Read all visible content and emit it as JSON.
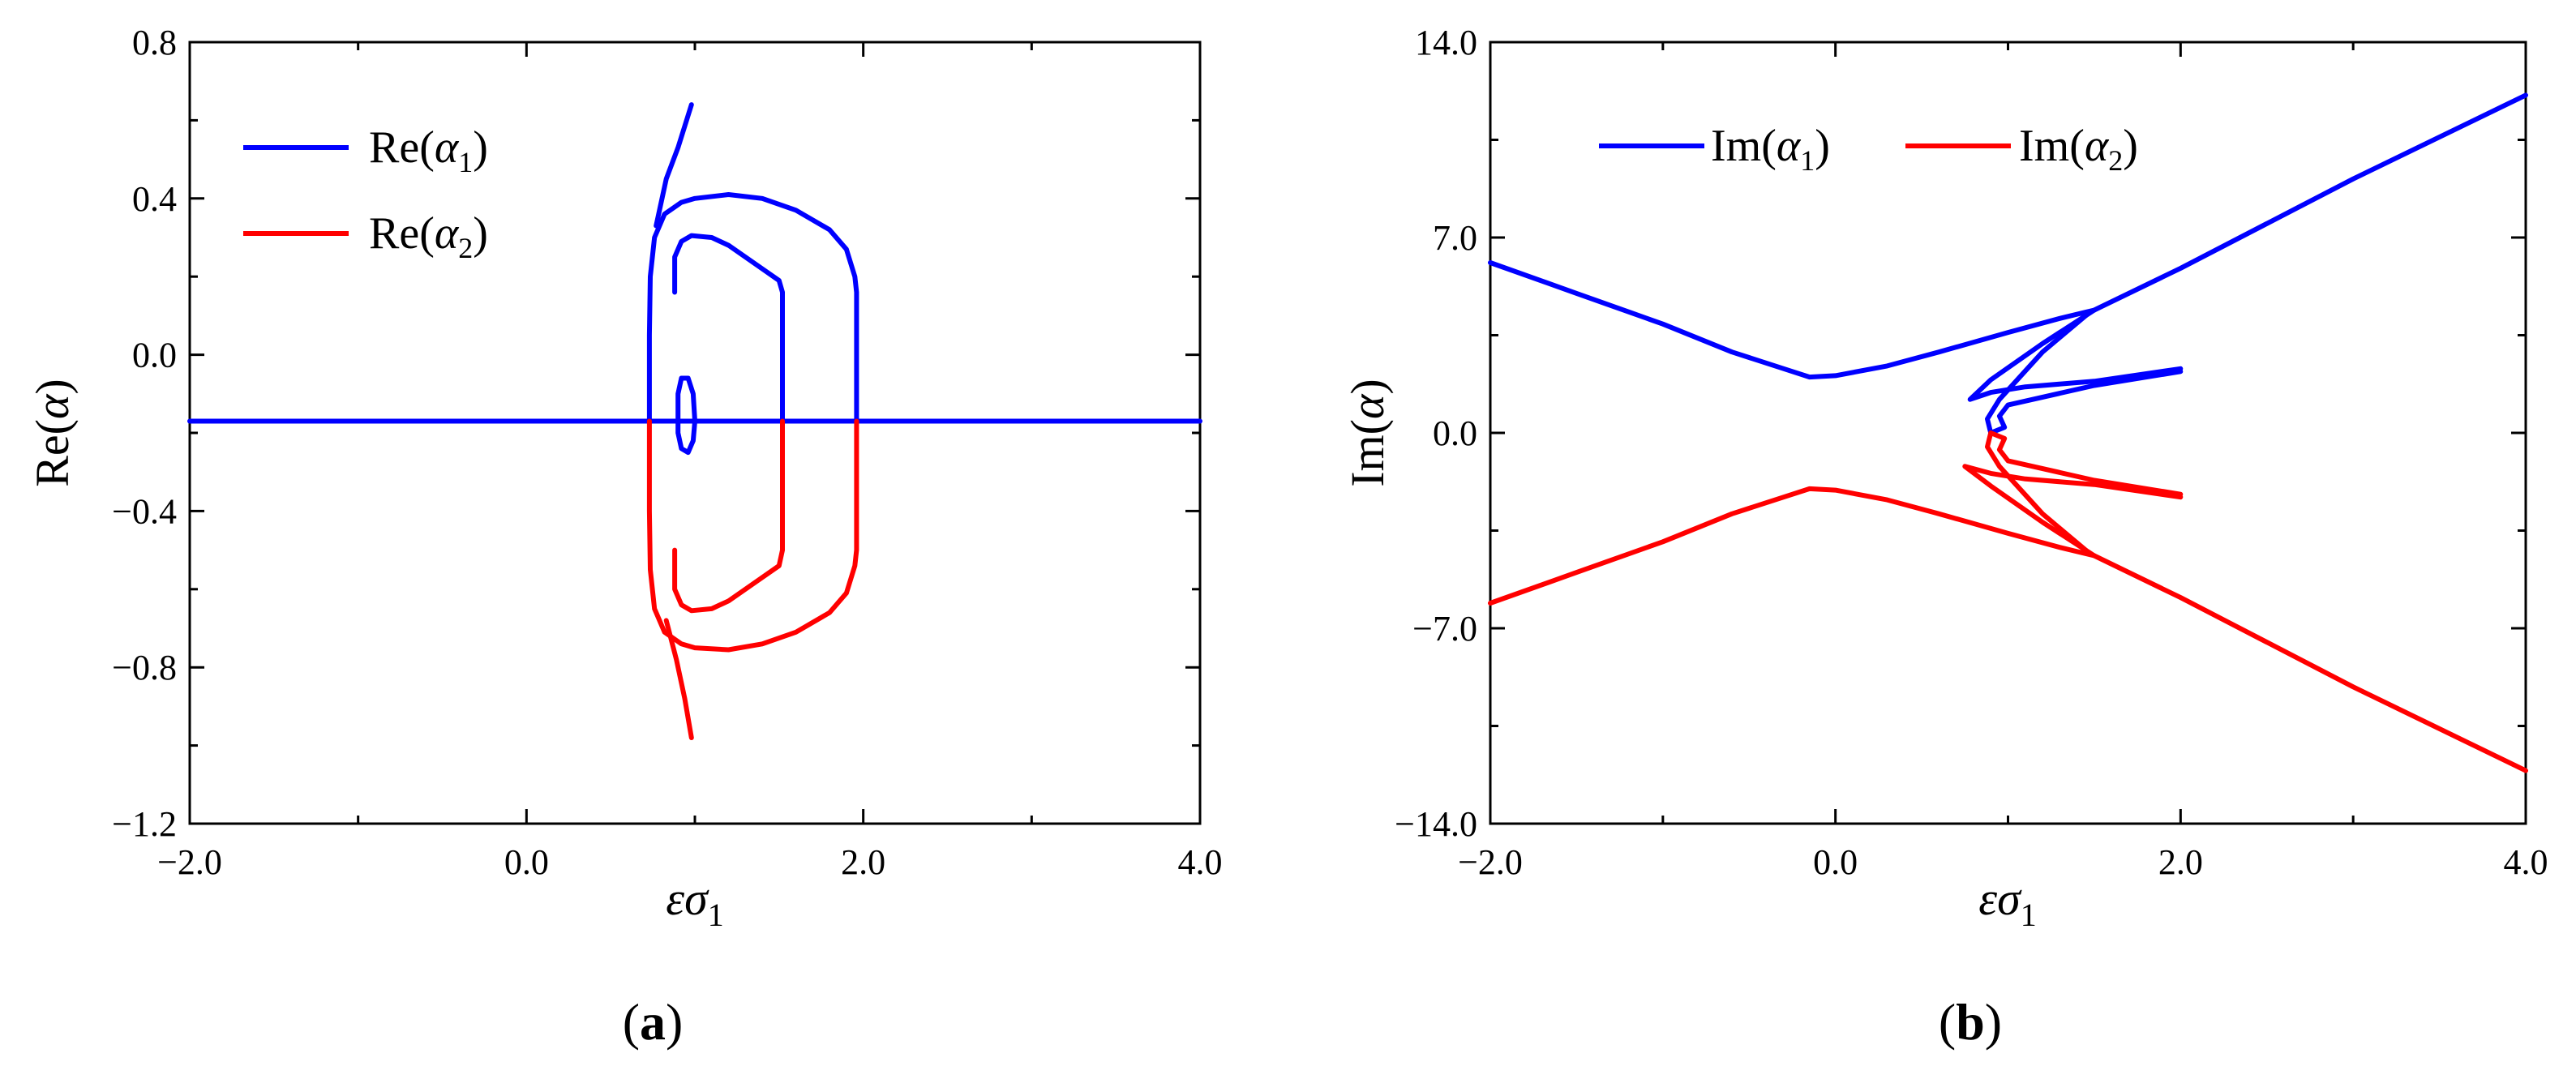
{
  "colors": {
    "blue": "#0000ff",
    "red": "#ff0000",
    "axis": "#000000"
  },
  "chart_data": [
    {
      "type": "line",
      "panel": "(a)",
      "xlabel": "εσ1",
      "ylabel": "Re(α)",
      "xlim": [
        -2.0,
        4.0
      ],
      "ylim": [
        -1.2,
        0.8
      ],
      "xticks": [
        "−2.0",
        "0.0",
        "2.0",
        "4.0"
      ],
      "xtick_values": [
        -2.0,
        0.0,
        2.0,
        4.0
      ],
      "yticks": [
        "0.8",
        "0.4",
        "0.0",
        "−0.4",
        "−0.8",
        "−1.2"
      ],
      "ytick_values": [
        0.8,
        0.4,
        0.0,
        -0.4,
        -0.8,
        -1.2
      ],
      "legend": {
        "placement": "top-left",
        "entries": [
          {
            "series": "Re1",
            "text": "Re(α1)"
          },
          {
            "series": "Re2",
            "text": "Re(α2)"
          }
        ]
      },
      "series": [
        {
          "name": "Re(α1)",
          "color": "blue",
          "segments": [
            [
              [
                -2.0,
                -0.17
              ],
              [
                4.0,
                -0.17
              ]
            ],
            [
              [
                0.73,
                -0.17
              ],
              [
                0.73,
                0.05
              ],
              [
                0.735,
                0.2
              ],
              [
                0.76,
                0.3
              ],
              [
                0.82,
                0.36
              ],
              [
                0.92,
                0.39
              ],
              [
                1.0,
                0.4
              ],
              [
                1.2,
                0.41
              ],
              [
                1.4,
                0.4
              ],
              [
                1.6,
                0.37
              ],
              [
                1.8,
                0.32
              ],
              [
                1.9,
                0.27
              ],
              [
                1.95,
                0.2
              ],
              [
                1.96,
                0.16
              ],
              [
                1.96,
                -0.17
              ]
            ],
            [
              [
                0.88,
                0.16
              ],
              [
                0.88,
                0.25
              ],
              [
                0.92,
                0.29
              ],
              [
                0.98,
                0.305
              ],
              [
                1.1,
                0.3
              ],
              [
                1.2,
                0.28
              ],
              [
                1.3,
                0.25
              ],
              [
                1.4,
                0.22
              ],
              [
                1.5,
                0.19
              ],
              [
                1.52,
                0.16
              ],
              [
                1.52,
                -0.17
              ]
            ],
            [
              [
                0.77,
                0.33
              ],
              [
                0.83,
                0.45
              ],
              [
                0.9,
                0.53
              ],
              [
                0.98,
                0.64
              ]
            ],
            [
              [
                0.9,
                -0.17
              ],
              [
                0.9,
                -0.1
              ],
              [
                0.92,
                -0.06
              ],
              [
                0.96,
                -0.06
              ],
              [
                0.99,
                -0.1
              ],
              [
                1.0,
                -0.17
              ],
              [
                0.99,
                -0.22
              ],
              [
                0.96,
                -0.25
              ],
              [
                0.92,
                -0.24
              ],
              [
                0.9,
                -0.2
              ],
              [
                0.9,
                -0.17
              ]
            ]
          ]
        },
        {
          "name": "Re(α2)",
          "color": "red",
          "segments": [
            [
              [
                0.73,
                -0.17
              ],
              [
                0.73,
                -0.4
              ],
              [
                0.735,
                -0.55
              ],
              [
                0.76,
                -0.65
              ],
              [
                0.82,
                -0.71
              ],
              [
                0.92,
                -0.74
              ],
              [
                1.0,
                -0.75
              ],
              [
                1.2,
                -0.755
              ],
              [
                1.4,
                -0.74
              ],
              [
                1.6,
                -0.71
              ],
              [
                1.8,
                -0.66
              ],
              [
                1.9,
                -0.61
              ],
              [
                1.95,
                -0.54
              ],
              [
                1.96,
                -0.5
              ],
              [
                1.96,
                -0.17
              ]
            ],
            [
              [
                0.88,
                -0.5
              ],
              [
                0.88,
                -0.6
              ],
              [
                0.92,
                -0.64
              ],
              [
                0.98,
                -0.655
              ],
              [
                1.1,
                -0.65
              ],
              [
                1.2,
                -0.63
              ],
              [
                1.3,
                -0.6
              ],
              [
                1.4,
                -0.57
              ],
              [
                1.5,
                -0.54
              ],
              [
                1.52,
                -0.5
              ],
              [
                1.52,
                -0.17
              ]
            ],
            [
              [
                0.83,
                -0.68
              ],
              [
                0.89,
                -0.78
              ],
              [
                0.94,
                -0.88
              ],
              [
                0.98,
                -0.98
              ]
            ]
          ]
        }
      ]
    },
    {
      "type": "line",
      "panel": "(b)",
      "xlabel": "εσ1",
      "ylabel": "Im(α)",
      "xlim": [
        -2.0,
        4.0
      ],
      "ylim": [
        -14.0,
        14.0
      ],
      "xticks": [
        "−2.0",
        "0.0",
        "2.0",
        "4.0"
      ],
      "xtick_values": [
        -2.0,
        0.0,
        2.0,
        4.0
      ],
      "yticks": [
        "14.0",
        "7.0",
        "0.0",
        "−7.0",
        "−14.0"
      ],
      "ytick_values": [
        14.0,
        7.0,
        0.0,
        -7.0,
        -14.0
      ],
      "legend": {
        "placement": "top-left",
        "entries": [
          {
            "series": "Im1",
            "text": "Im(α1)"
          },
          {
            "series": "Im2",
            "text": "Im(α2)"
          }
        ]
      },
      "series": [
        {
          "name": "Im(α1)",
          "color": "blue",
          "segments": [
            [
              [
                -2.0,
                6.1
              ],
              [
                -1.5,
                5.0
              ],
              [
                -1.0,
                3.9
              ],
              [
                -0.6,
                2.9
              ],
              [
                -0.3,
                2.3
              ],
              [
                -0.15,
                2.0
              ],
              [
                0.0,
                2.05
              ],
              [
                0.3,
                2.4
              ],
              [
                0.6,
                2.9
              ],
              [
                1.0,
                3.6
              ],
              [
                1.3,
                4.1
              ],
              [
                1.5,
                4.4
              ],
              [
                2.0,
                5.9
              ],
              [
                3.0,
                9.1
              ],
              [
                4.0,
                12.1
              ]
            ],
            [
              [
                1.5,
                4.4
              ],
              [
                1.2,
                3.2
              ],
              [
                0.9,
                1.9
              ],
              [
                0.78,
                1.2
              ],
              [
                0.9,
                1.45
              ],
              [
                1.1,
                1.65
              ],
              [
                1.5,
                1.85
              ],
              [
                2.0,
                2.3
              ]
            ],
            [
              [
                1.45,
                4.2
              ],
              [
                1.2,
                2.9
              ],
              [
                0.95,
                1.2
              ],
              [
                0.88,
                0.5
              ],
              [
                0.9,
                0.0
              ],
              [
                0.98,
                0.2
              ],
              [
                0.95,
                0.6
              ],
              [
                1.0,
                1.0
              ],
              [
                1.5,
                1.7
              ],
              [
                2.0,
                2.2
              ]
            ]
          ]
        },
        {
          "name": "Im(α2)",
          "color": "red",
          "segments": [
            [
              [
                -2.0,
                -6.1
              ],
              [
                -1.5,
                -5.0
              ],
              [
                -1.0,
                -3.9
              ],
              [
                -0.6,
                -2.9
              ],
              [
                -0.3,
                -2.3
              ],
              [
                -0.15,
                -2.0
              ],
              [
                0.0,
                -2.05
              ],
              [
                0.3,
                -2.4
              ],
              [
                0.6,
                -2.9
              ],
              [
                1.0,
                -3.6
              ],
              [
                1.3,
                -4.1
              ],
              [
                1.5,
                -4.4
              ],
              [
                2.0,
                -5.9
              ],
              [
                3.0,
                -9.1
              ],
              [
                4.0,
                -12.1
              ]
            ],
            [
              [
                1.5,
                -4.4
              ],
              [
                1.2,
                -3.2
              ],
              [
                0.9,
                -1.9
              ],
              [
                0.75,
                -1.2
              ],
              [
                0.9,
                -1.45
              ],
              [
                1.1,
                -1.65
              ],
              [
                1.5,
                -1.85
              ],
              [
                2.0,
                -2.3
              ]
            ],
            [
              [
                1.45,
                -4.2
              ],
              [
                1.2,
                -2.9
              ],
              [
                0.95,
                -1.2
              ],
              [
                0.88,
                -0.5
              ],
              [
                0.9,
                0.0
              ],
              [
                0.98,
                -0.2
              ],
              [
                0.95,
                -0.6
              ],
              [
                1.0,
                -1.0
              ],
              [
                1.5,
                -1.7
              ],
              [
                2.0,
                -2.2
              ]
            ]
          ]
        }
      ]
    }
  ]
}
